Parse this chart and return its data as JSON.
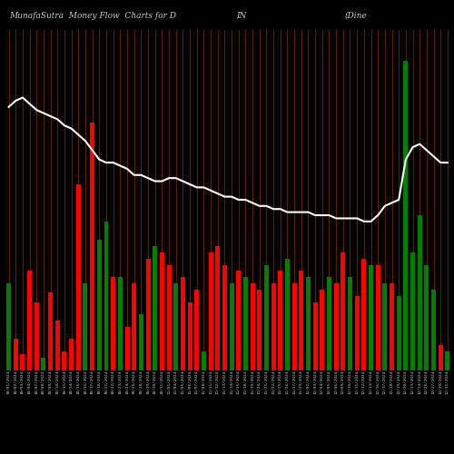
{
  "title_left": "MunafaSutra  Money Flow  Charts for D",
  "title_mid": "IN",
  "title_right": "(Dine",
  "background_color": "#000000",
  "bar_area_bg": "#080200",
  "grid_color": "#7B3A00",
  "title_color": "#cccccc",
  "bar_colors": [
    "green",
    "red",
    "red",
    "red",
    "red",
    "green",
    "red",
    "red",
    "red",
    "red",
    "red",
    "green",
    "red",
    "green",
    "green",
    "red",
    "green",
    "red",
    "red",
    "green",
    "red",
    "green",
    "red",
    "red",
    "green",
    "red",
    "red",
    "red",
    "green",
    "red",
    "red",
    "red",
    "green",
    "red",
    "green",
    "red",
    "red",
    "green",
    "red",
    "red",
    "green",
    "red",
    "red",
    "green",
    "red",
    "red",
    "green",
    "red",
    "red",
    "green",
    "red",
    "red",
    "green",
    "red",
    "green",
    "red",
    "green",
    "green",
    "green",
    "green",
    "green",
    "green",
    "red",
    "green"
  ],
  "bar_heights": [
    28,
    10,
    5,
    32,
    22,
    4,
    25,
    16,
    6,
    10,
    60,
    28,
    80,
    42,
    48,
    30,
    30,
    14,
    28,
    18,
    36,
    40,
    38,
    34,
    28,
    30,
    22,
    26,
    6,
    38,
    40,
    34,
    28,
    32,
    30,
    28,
    26,
    34,
    28,
    32,
    36,
    28,
    32,
    30,
    22,
    26,
    30,
    28,
    38,
    30,
    24,
    36,
    34,
    34,
    28,
    28,
    24,
    100,
    38,
    50,
    34,
    26,
    8,
    6
  ],
  "line_values": [
    85,
    87,
    88,
    86,
    84,
    83,
    82,
    81,
    79,
    78,
    76,
    74,
    71,
    68,
    67,
    67,
    66,
    65,
    63,
    63,
    62,
    61,
    61,
    62,
    62,
    61,
    60,
    59,
    59,
    58,
    57,
    56,
    56,
    55,
    55,
    54,
    53,
    53,
    52,
    52,
    51,
    51,
    51,
    51,
    50,
    50,
    50,
    49,
    49,
    49,
    49,
    48,
    48,
    50,
    53,
    54,
    55,
    68,
    72,
    73,
    71,
    69,
    67,
    67
  ],
  "x_labels": [
    "10/01/2024",
    "10/02/2024",
    "10/03/2024",
    "10/04/2024",
    "10/07/2024",
    "10/08/2024",
    "10/09/2024",
    "10/10/2024",
    "10/11/2024",
    "10/14/2024",
    "10/15/2024",
    "10/16/2024",
    "10/17/2024",
    "10/18/2024",
    "10/21/2024",
    "10/22/2024",
    "10/23/2024",
    "10/24/2024",
    "10/25/2024",
    "10/28/2024",
    "10/29/2024",
    "10/30/2024",
    "10/31/2024",
    "11/01/2024",
    "11/04/2024",
    "11/05/2024",
    "11/06/2024",
    "11/07/2024",
    "11/08/2024",
    "11/11/2024",
    "11/12/2024",
    "11/13/2024",
    "11/14/2024",
    "11/15/2024",
    "11/18/2024",
    "11/19/2024",
    "11/20/2024",
    "11/21/2024",
    "11/22/2024",
    "11/25/2024",
    "11/26/2024",
    "11/27/2024",
    "11/29/2024",
    "12/02/2024",
    "12/03/2024",
    "12/04/2024",
    "12/05/2024",
    "12/06/2024",
    "12/09/2024",
    "12/10/2024",
    "12/11/2024",
    "12/12/2024",
    "12/13/2024",
    "12/16/2024",
    "12/17/2024",
    "12/18/2024",
    "12/19/2024",
    "12/20/2024",
    "12/23/2024",
    "12/24/2024",
    "12/26/2024",
    "12/27/2024",
    "12/30/2024",
    "12/31/2024"
  ],
  "n_bars": 64,
  "line_color": "#ffffff",
  "line_width": 1.5,
  "fig_width": 5.0,
  "fig_height": 5.0,
  "dpi": 100,
  "ymax": 110,
  "line_scale": 110
}
